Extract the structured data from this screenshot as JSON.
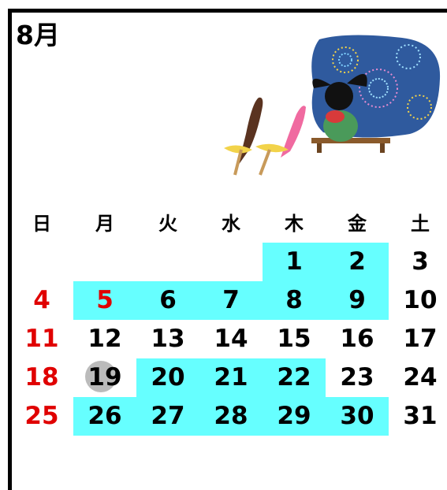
{
  "title": "8月",
  "weekdays": [
    "日",
    "月",
    "火",
    "水",
    "木",
    "金",
    "土"
  ],
  "weeks": [
    [
      null,
      null,
      null,
      null,
      1,
      2,
      3
    ],
    [
      4,
      5,
      6,
      7,
      8,
      9,
      10
    ],
    [
      11,
      12,
      13,
      14,
      15,
      16,
      17
    ],
    [
      18,
      19,
      20,
      21,
      22,
      23,
      24
    ],
    [
      25,
      26,
      27,
      28,
      29,
      30,
      31
    ]
  ]
}
